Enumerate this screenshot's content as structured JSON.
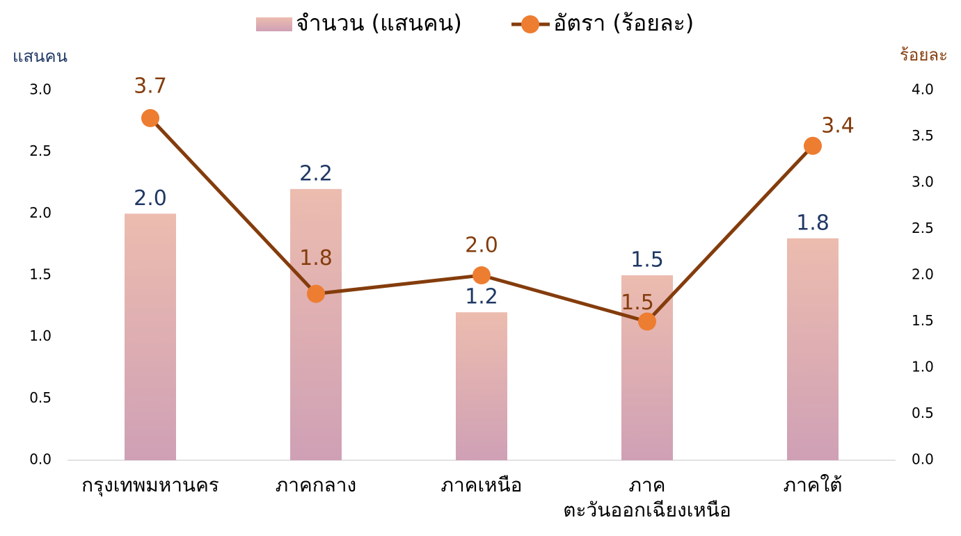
{
  "chart_data": {
    "type": "bar_line",
    "categories": [
      "กรุงเทพมหานคร",
      "ภาคกลาง",
      "ภาคเหนือ",
      "ภาค\nตะวันออกเฉียงเหนือ",
      "ภาคใต้"
    ],
    "y_label": "แสนคน",
    "y2_label": "ร้อยละ",
    "legend": "top",
    "series": [
      {
        "name": "จำนวน (แสนคน)",
        "type": "bar",
        "color": [
          "#ecbcaf",
          "#cfa0b5"
        ],
        "label_color": "#1f3864",
        "values": [
          2.0,
          2.2,
          1.2,
          1.5,
          1.8
        ],
        "value_labels": [
          "2.0",
          "2.2",
          "1.2",
          "1.5",
          "1.8"
        ]
      },
      {
        "name": "อัตรา (ร้อยละ)",
        "type": "line",
        "axis": "y2",
        "color": "#843c0c",
        "marker_color": "#ed7d31",
        "label_color": "#843c0c",
        "values": [
          3.7,
          1.8,
          2.0,
          1.5,
          3.4
        ],
        "value_labels": [
          "3.7",
          "1.8",
          "2.0",
          "1.5",
          "3.4"
        ]
      }
    ],
    "ylim": [
      0,
      3
    ],
    "yticks": [
      {
        "value": 0,
        "label": "0.0"
      },
      0.5,
      {
        "value": 1,
        "label": "1.0"
      },
      1.5,
      {
        "value": 2,
        "label": "2.0"
      },
      2.5,
      {
        "value": 3,
        "label": "3.0"
      }
    ],
    "y2lim": [
      0,
      4
    ],
    "y2ticks": [
      {
        "value": 0,
        "label": "0.0"
      },
      0.5,
      {
        "value": 1,
        "label": "1.0"
      },
      1.5,
      {
        "value": 2,
        "label": "2.0"
      },
      2.5,
      {
        "value": 3,
        "label": "3.0"
      },
      3.5,
      {
        "value": 4,
        "label": "4.0"
      }
    ]
  }
}
